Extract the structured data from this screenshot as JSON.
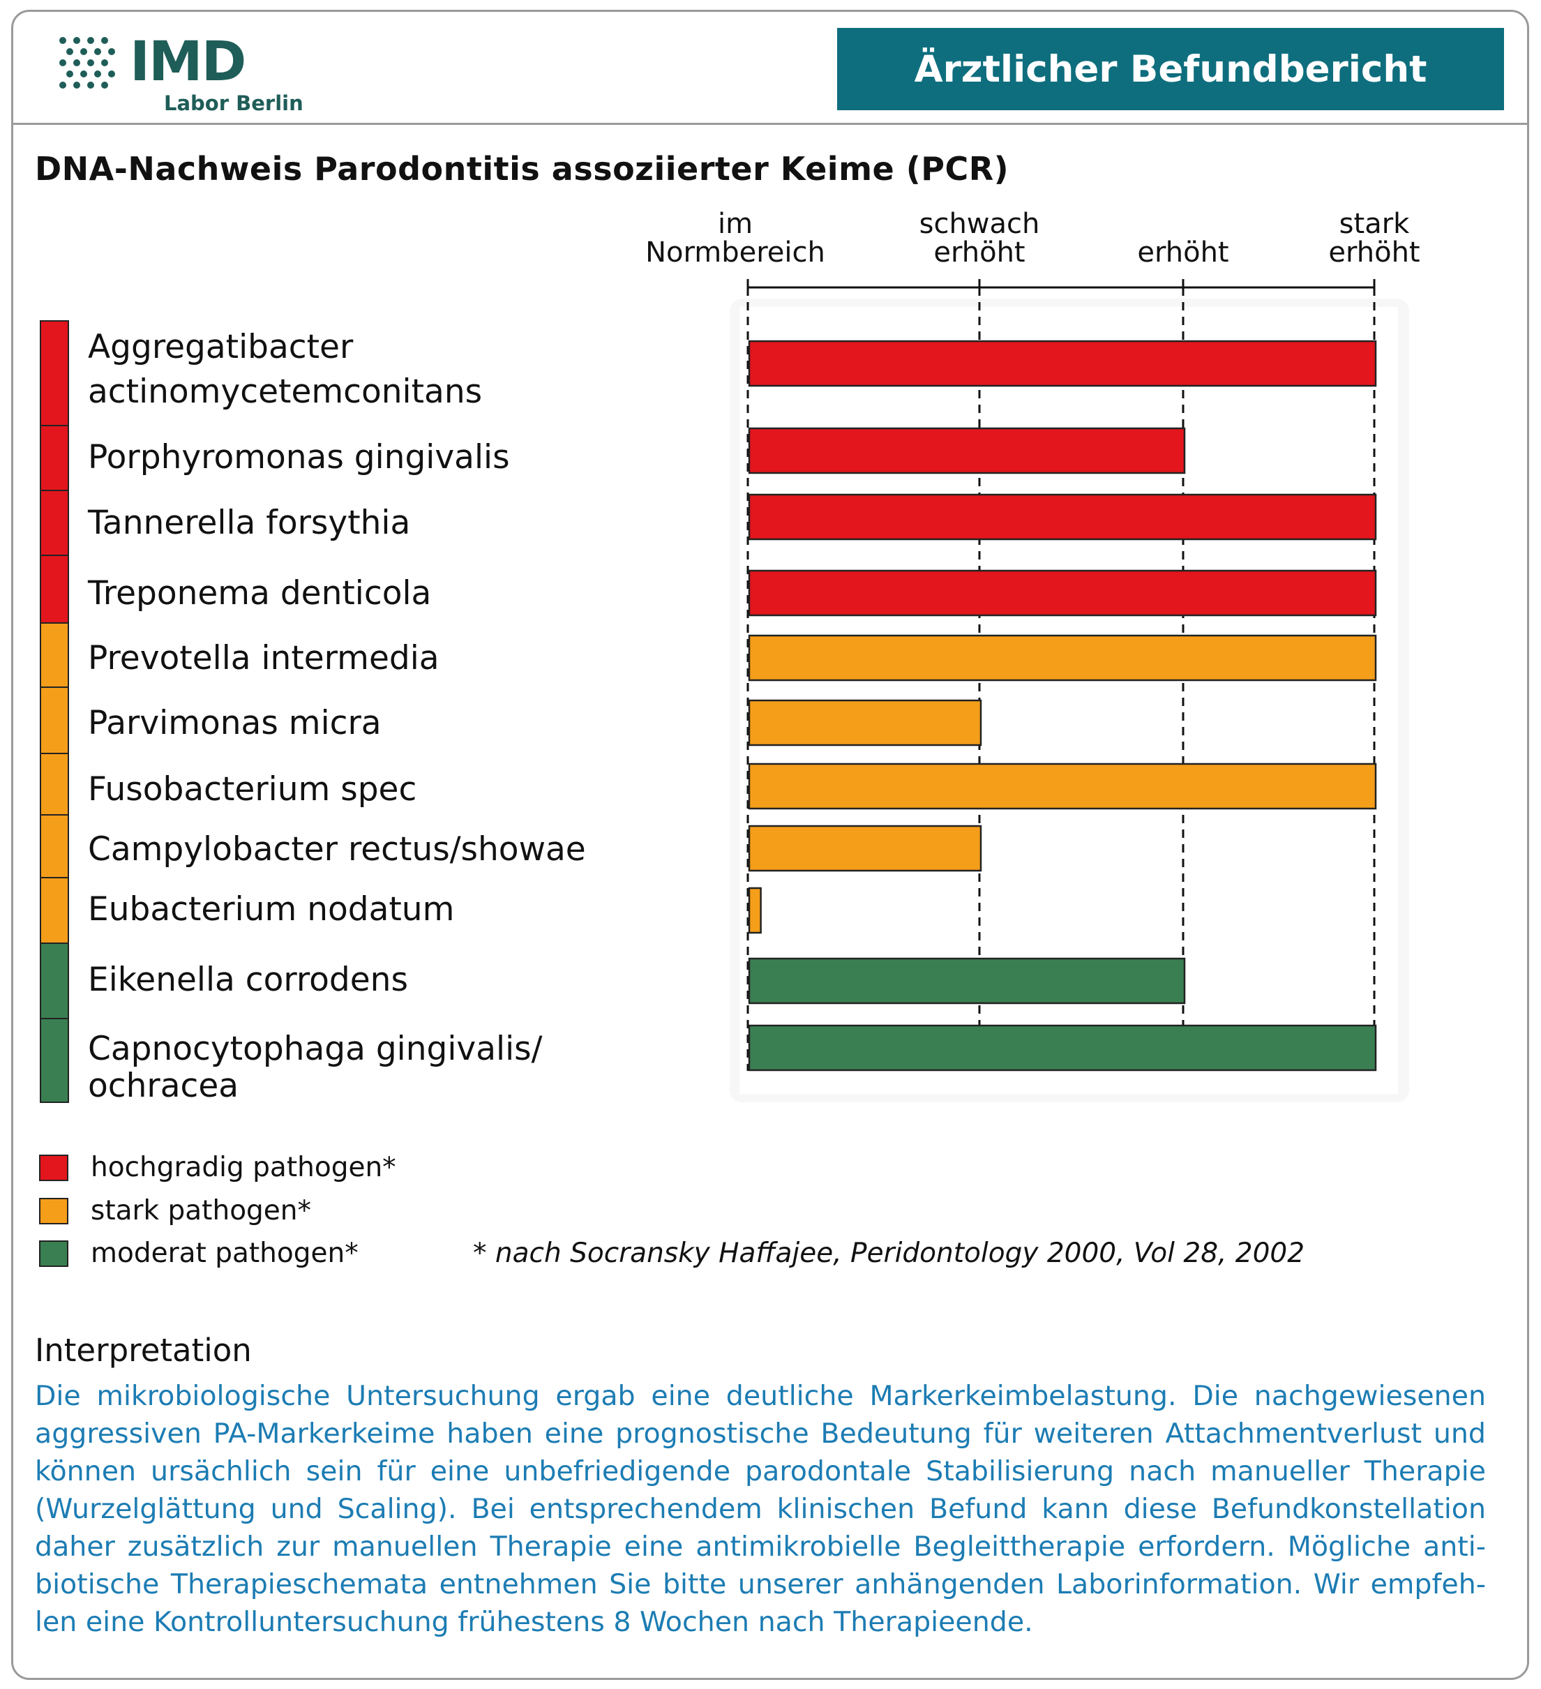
{
  "header": {
    "logo_name": "IMD",
    "logo_subtitle": "Labor Berlin",
    "report_title": "Ärztlicher Befundbericht"
  },
  "section_title": "DNA-Nachweis Parodontitis assoziierter Keime (PCR)",
  "colors": {
    "highly_pathogenic": "#e3151d",
    "strongly_pathogenic": "#f59e1a",
    "moderately_pathogenic": "#3a7f52",
    "report_badge": "#0e6e7e",
    "logo": "#1f5d58",
    "interpretation_text": "#1c7cb3"
  },
  "chart_data": {
    "type": "bar",
    "orientation": "horizontal",
    "scale_levels": [
      {
        "label_lines": [
          "im",
          "Normbereich"
        ]
      },
      {
        "label_lines": [
          "schwach",
          "erhöht"
        ]
      },
      {
        "label_lines": [
          "erhöht"
        ]
      },
      {
        "label_lines": [
          "stark",
          "erhöht"
        ]
      }
    ],
    "scale_range": [
      0,
      3
    ],
    "grid": "dashed vertical lines at each level",
    "legend_placement": "bottom-left",
    "categories": [
      {
        "name_lines": [
          "Aggregatibacter",
          "actinomycetemconitans"
        ],
        "group": "highly_pathogenic",
        "value": 3
      },
      {
        "name_lines": [
          "Porphyromonas gingivalis"
        ],
        "group": "highly_pathogenic",
        "value": 2
      },
      {
        "name_lines": [
          "Tannerella forsythia"
        ],
        "group": "highly_pathogenic",
        "value": 3
      },
      {
        "name_lines": [
          "Treponema denticola"
        ],
        "group": "highly_pathogenic",
        "value": 3
      },
      {
        "name_lines": [
          "Prevotella intermedia"
        ],
        "group": "strongly_pathogenic",
        "value": 3
      },
      {
        "name_lines": [
          "Parvimonas micra"
        ],
        "group": "strongly_pathogenic",
        "value": 1
      },
      {
        "name_lines": [
          "Fusobacterium spec"
        ],
        "group": "strongly_pathogenic",
        "value": 3
      },
      {
        "name_lines": [
          "Campylobacter rectus/showae"
        ],
        "group": "strongly_pathogenic",
        "value": 1
      },
      {
        "name_lines": [
          "Eubacterium nodatum"
        ],
        "group": "strongly_pathogenic",
        "value": 0.05
      },
      {
        "name_lines": [
          "Eikenella corrodens"
        ],
        "group": "moderately_pathogenic",
        "value": 2
      },
      {
        "name_lines": [
          "Capnocytophaga gingivalis/",
          "ochracea"
        ],
        "group": "moderately_pathogenic",
        "value": 3
      }
    ],
    "legend": [
      {
        "group": "highly_pathogenic",
        "label": "hochgradig pathogen*"
      },
      {
        "group": "strongly_pathogenic",
        "label": "stark pathogen*"
      },
      {
        "group": "moderately_pathogenic",
        "label": "moderat pathogen*"
      }
    ],
    "footnote": "* nach Socransky Haffajee, Peridontology 2000, Vol 28, 2002"
  },
  "interpretation": {
    "heading": "Interpretation",
    "text": "Die mikrobiologische Untersuchung ergab eine deutliche Markerkeimbelastung. Die nachgewiesenen aggressiven PA-Markerkeime haben eine prognostische Bedeutung für weiteren Attachmentverlust und können ursächlich sein für eine unbefriedigende parodontale Stabilisierung nach manueller Therapie (Wurzelglättung und Scaling). Bei entsprechendem klinischen Befund kann diese Befundkonstellation daher zusätzlich zur manuellen Therapie eine antimikrobielle Begleittherapie erfordern. Mögliche anti­biotische Therapieschemata entnehmen Sie bitte unserer anhängenden Laborinformation. Wir empfeh­len eine Kontrolluntersuchung frühestens 8 Wochen nach Therapieende."
  }
}
